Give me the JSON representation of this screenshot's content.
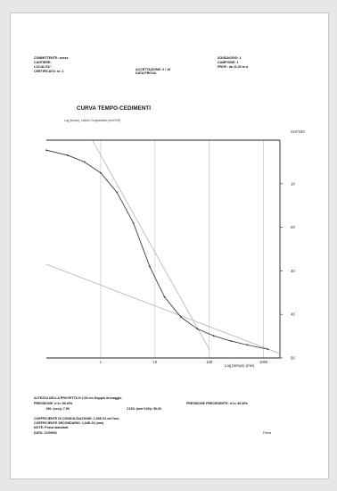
{
  "header": {
    "committente": "COMMITTENTE: xxxxx",
    "cantiere": "CANTIERE:",
    "localita": "LOCALITA':",
    "certificato": "CERTIFICATO: nr. 1",
    "accettazione": "ACCETTAZIONE: 0 / 10",
    "data_prova": "DATA PROVA:",
    "sondaggio": "SONDAGGIO: 1",
    "campione": "CAMPIONE: 1",
    "prof": "PROF.: da 11,00 m a"
  },
  "chart_title": "CURVA TEMPO-CEDIMENTI",
  "chart_subtitle": "Log (tempo), Letture Comparatore (mm*100)",
  "footer": {
    "altezza": "ALTEZZA DELLA PROVETTA H 2,00 cm Doppio drenaggio",
    "pressione": "PRESSIONE: σ'v= 98 kPa",
    "pressione_precedente": "PRESSIONE PRECEDENTE: σ'v= 49 kPa",
    "t50": "t50: (sec)= 7,50",
    "c100": "C100: (mm*100)= 50,00",
    "cv": "COEFFICIENTE DI CONSOLIDAZIONE: 1,93E-04 cm²/sec",
    "calpha": "COEFFICIENTE SECONDARIO: 1,04E-03 (mm)",
    "note": "NOTE: Prova standard",
    "data": "DATA: 12/09/03",
    "firma": "Firma"
  },
  "chart_data": {
    "type": "line",
    "title": "CURVA TEMPO-CEDIMENTI",
    "xlabel": "Log (tempo) (min)",
    "ylabel": "mm*100",
    "x_scale": "log",
    "xlim": [
      0.1,
      2000
    ],
    "ylim": [
      50,
      0
    ],
    "x_ticks": [
      1,
      10,
      100,
      1000
    ],
    "y_ticks": [
      10,
      20,
      30,
      40,
      50
    ],
    "grid": "vertical",
    "series": [
      {
        "x": [
          0.1,
          0.25,
          0.5,
          1,
          2,
          4,
          8,
          15,
          30,
          60,
          120,
          250,
          500,
          1200
        ],
        "y": [
          2.3,
          3.5,
          5.0,
          7.5,
          12.0,
          19.0,
          29.0,
          36.0,
          40.6,
          43.3,
          44.9,
          46.1,
          47.0,
          48.0
        ]
      }
    ],
    "construction_lines": [
      {
        "x": [
          0.7,
          100
        ],
        "y": [
          0,
          48
        ]
      },
      {
        "x": [
          0.1,
          2000
        ],
        "y": [
          28.5,
          49.0
        ]
      }
    ]
  }
}
